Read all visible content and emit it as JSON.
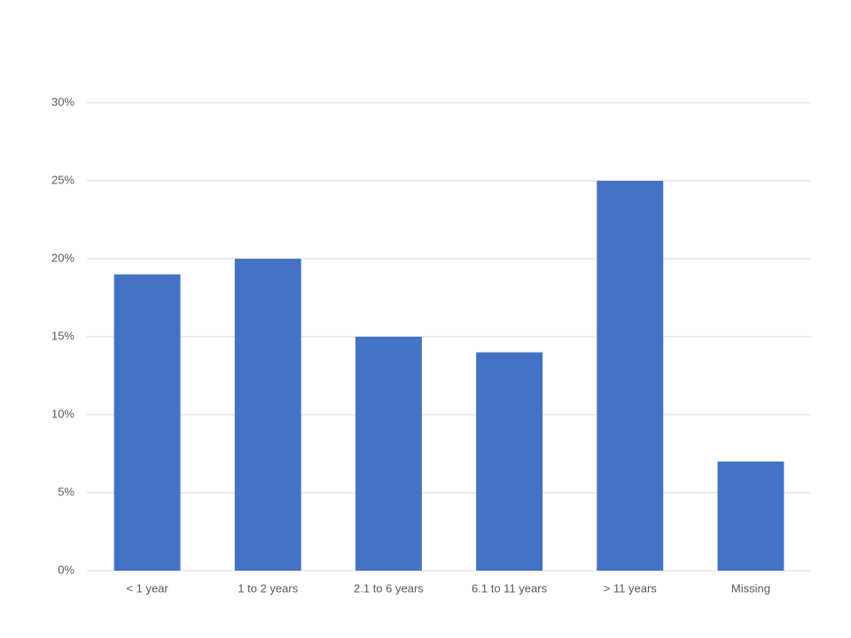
{
  "chart_data": {
    "type": "bar",
    "categories": [
      "< 1 year",
      "1 to 2 years",
      "2.1 to 6 years",
      "6.1 to 11 years",
      "> 11 years",
      "Missing"
    ],
    "values": [
      19,
      20,
      15,
      14,
      25,
      7
    ],
    "color": "#4472c4",
    "ylim": [
      0,
      30
    ],
    "yticks": [
      {
        "value": 0,
        "label": "0%"
      },
      {
        "value": 5,
        "label": "5%"
      },
      {
        "value": 10,
        "label": "10%"
      },
      {
        "value": 15,
        "label": "15%"
      },
      {
        "value": 20,
        "label": "20%"
      },
      {
        "value": 25,
        "label": "25%"
      },
      {
        "value": 30,
        "label": "30%"
      }
    ],
    "grid": true
  }
}
